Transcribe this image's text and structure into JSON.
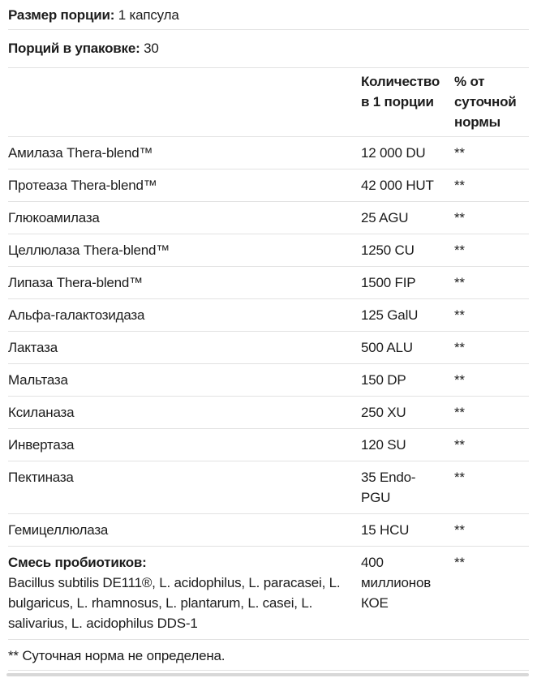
{
  "serving": {
    "size_label": "Размер порции:",
    "size_value": "1 капсула",
    "count_label": "Порций в упаковке:",
    "count_value": "30"
  },
  "table": {
    "headers": {
      "amount": "Количество в 1 порции",
      "daily_value": "% от суточной нормы"
    },
    "rows": [
      {
        "name": "Амилаза Thera-blend™",
        "amount": "12 000 DU",
        "dv": "**"
      },
      {
        "name": "Протеаза Thera-blend™",
        "amount": "42 000 HUT",
        "dv": "**"
      },
      {
        "name": "Глюкоамилаза",
        "amount": "25 AGU",
        "dv": "**"
      },
      {
        "name": "Целлюлаза Thera-blend™",
        "amount": "1250 CU",
        "dv": "**"
      },
      {
        "name": "Липаза Thera-blend™",
        "amount": "1500 FIP",
        "dv": "**"
      },
      {
        "name": "Альфа-галактозидаза",
        "amount": "125 GalU",
        "dv": "**"
      },
      {
        "name": "Лактаза",
        "amount": "500 ALU",
        "dv": "**"
      },
      {
        "name": "Мальтаза",
        "amount": "150 DP",
        "dv": "**"
      },
      {
        "name": "Ксиланаза",
        "amount": "250 XU",
        "dv": "**"
      },
      {
        "name": "Инвертаза",
        "amount": "120 SU",
        "dv": "**"
      },
      {
        "name": "Пектиназа",
        "amount": "35 Endo-PGU",
        "dv": "**"
      },
      {
        "name": "Гемицеллюлаза",
        "amount": "15 HCU",
        "dv": "**"
      }
    ],
    "probiotic_row": {
      "name": "Смесь пробиотиков:",
      "description": "Bacillus subtilis DE111®, L. acidophilus, L. paracasei, L. bulgaricus, L. rhamnosus, L. plantarum, L. casei, L. salivarius, L. acidophilus DDS-1",
      "amount": "400 миллионов КОЕ",
      "dv": "**"
    }
  },
  "footnote": "** Суточная норма не определена.",
  "colors": {
    "text": "#1c1c1c",
    "divider": "#e2e2e2",
    "scrollbar_thumb": "#d8d8d8"
  }
}
